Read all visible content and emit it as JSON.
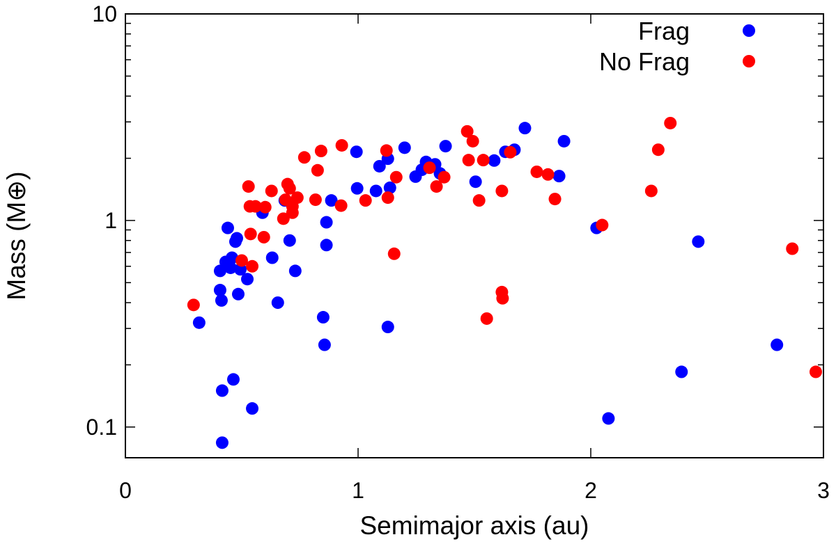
{
  "chart_data": {
    "type": "scatter",
    "x_label": "Semimajor axis (au)",
    "y_label": "Mass (M⊕)",
    "xlim": [
      0,
      3
    ],
    "xticks": [
      0,
      1,
      2,
      3
    ],
    "ylim": [
      0.071,
      10
    ],
    "yscale": "log",
    "yticks": [
      0.1,
      1,
      10
    ],
    "yminorticks": [
      0.2,
      0.3,
      0.4,
      0.5,
      0.6,
      0.7,
      0.8,
      0.9,
      2,
      3,
      4,
      5,
      6,
      7,
      8,
      9
    ],
    "legend": "upper right",
    "series": [
      {
        "name": "Frag",
        "color": "#0000ff",
        "x": [
          0.317,
          0.407,
          0.407,
          0.413,
          0.416,
          0.416,
          0.431,
          0.44,
          0.452,
          0.458,
          0.464,
          0.473,
          0.479,
          0.485,
          0.494,
          0.524,
          0.545,
          0.589,
          0.631,
          0.655,
          0.685,
          0.706,
          0.73,
          0.85,
          0.856,
          0.864,
          0.864,
          0.885,
          0.993,
          0.996,
          1.077,
          1.092,
          1.128,
          1.128,
          1.137,
          1.2,
          1.247,
          1.274,
          1.292,
          1.331,
          1.352,
          1.376,
          1.505,
          1.585,
          1.633,
          1.672,
          1.717,
          1.864,
          1.885,
          2.025,
          2.076,
          2.39,
          2.462,
          2.8
        ],
        "values": [
          0.32,
          0.57,
          0.46,
          0.41,
          0.15,
          0.084,
          0.63,
          0.92,
          0.59,
          0.66,
          0.17,
          0.79,
          0.82,
          0.44,
          0.58,
          0.52,
          0.123,
          1.09,
          0.66,
          0.4,
          1.25,
          0.8,
          0.57,
          0.34,
          0.25,
          0.98,
          0.76,
          1.25,
          2.15,
          1.43,
          1.39,
          1.83,
          1.99,
          0.305,
          1.44,
          2.25,
          1.63,
          1.76,
          1.92,
          1.87,
          1.69,
          2.29,
          1.54,
          1.95,
          2.15,
          2.2,
          2.8,
          1.64,
          2.42,
          0.92,
          0.11,
          0.185,
          0.79,
          0.25
        ]
      },
      {
        "name": "No Frag",
        "color": "#ff0000",
        "x": [
          0.293,
          0.5,
          0.529,
          0.535,
          0.538,
          0.545,
          0.559,
          0.595,
          0.601,
          0.628,
          0.679,
          0.688,
          0.697,
          0.706,
          0.718,
          0.718,
          0.739,
          0.769,
          0.817,
          0.826,
          0.841,
          0.93,
          0.927,
          1.032,
          1.122,
          1.128,
          1.155,
          1.164,
          1.307,
          1.337,
          1.37,
          1.469,
          1.475,
          1.493,
          1.52,
          1.538,
          1.553,
          1.618,
          1.621,
          1.618,
          1.654,
          1.768,
          1.816,
          1.846,
          2.049,
          2.26,
          2.29,
          2.342,
          2.866,
          2.967
        ],
        "values": [
          0.39,
          0.64,
          1.46,
          1.17,
          0.86,
          0.6,
          1.17,
          0.83,
          1.16,
          1.39,
          1.02,
          1.26,
          1.5,
          1.43,
          1.09,
          1.17,
          1.29,
          2.02,
          1.26,
          1.75,
          2.17,
          2.31,
          1.18,
          1.25,
          2.18,
          1.29,
          0.69,
          1.62,
          1.8,
          1.46,
          1.62,
          2.7,
          1.96,
          2.42,
          1.25,
          1.96,
          0.335,
          0.45,
          0.42,
          1.39,
          2.14,
          1.72,
          1.67,
          1.27,
          0.95,
          1.39,
          2.2,
          2.96,
          0.73,
          0.185
        ]
      }
    ]
  }
}
